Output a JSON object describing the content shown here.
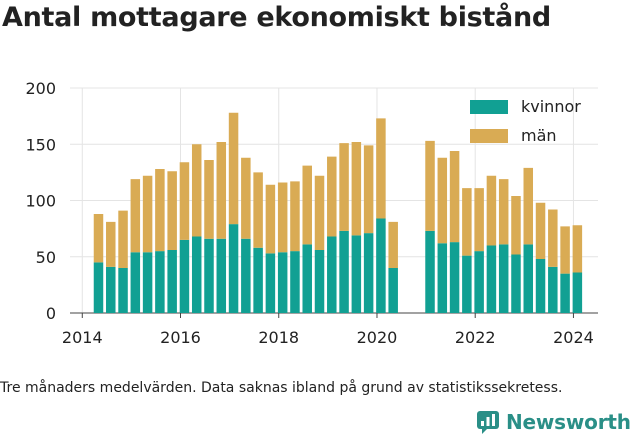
{
  "title": "Antal mottagare ekonomiskt bistånd",
  "note": "Tre månaders medelvärden. Data saknas ibland på grund av statistikssekretess.",
  "brand": "Newsworthy",
  "colors": {
    "kvinnor": "#11a093",
    "man": "#d9ab54",
    "grid": "#e4e4e4",
    "text": "#222222"
  },
  "chart_data": {
    "type": "bar",
    "stacked": true,
    "title": "Antal mottagare ekonomiskt bistånd",
    "xlabel": "",
    "ylabel": "",
    "ylim": [
      0,
      200
    ],
    "yticks": [
      0,
      50,
      100,
      150,
      200
    ],
    "xticks": [
      2014,
      2016,
      2018,
      2020,
      2022,
      2024
    ],
    "xlim": [
      2013.75,
      2024.5
    ],
    "grid": true,
    "legend": "top-right",
    "x": [
      2014.33,
      2014.58,
      2014.83,
      2015.08,
      2015.33,
      2015.58,
      2015.83,
      2016.08,
      2016.33,
      2016.58,
      2016.83,
      2017.08,
      2017.33,
      2017.58,
      2017.83,
      2018.08,
      2018.33,
      2018.58,
      2018.83,
      2019.08,
      2019.33,
      2019.58,
      2019.83,
      2020.08,
      2020.33,
      2021.08,
      2021.33,
      2021.58,
      2021.83,
      2022.08,
      2022.33,
      2022.58,
      2022.83,
      2023.08,
      2023.33,
      2023.58,
      2023.83,
      2024.08
    ],
    "series": [
      {
        "name": "kvinnor",
        "color": "#11a093",
        "values": [
          45,
          41,
          40,
          54,
          54,
          55,
          56,
          65,
          68,
          66,
          66,
          79,
          66,
          58,
          53,
          54,
          55,
          61,
          56,
          68,
          73,
          69,
          71,
          84,
          40,
          73,
          62,
          63,
          51,
          55,
          60,
          61,
          52,
          61,
          48,
          41,
          35,
          36
        ]
      },
      {
        "name": "män",
        "color": "#d9ab54",
        "values": [
          43,
          40,
          51,
          65,
          68,
          73,
          70,
          69,
          82,
          70,
          86,
          99,
          72,
          67,
          61,
          62,
          62,
          70,
          66,
          71,
          78,
          83,
          78,
          89,
          41,
          80,
          76,
          81,
          60,
          56,
          62,
          58,
          52,
          68,
          50,
          51,
          42,
          42
        ]
      }
    ]
  }
}
